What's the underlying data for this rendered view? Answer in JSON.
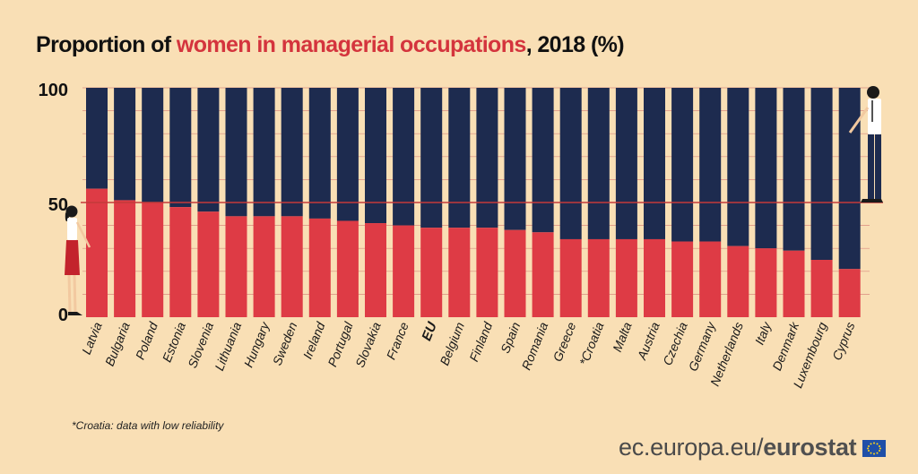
{
  "title": {
    "prefix": "Proportion of ",
    "highlight": "women in managerial occupations",
    "suffix": ", 2018 (%)"
  },
  "footnote": "*Croatia: data with low reliability",
  "brand": {
    "domain": "ec.europa.eu/",
    "name": "eurostat"
  },
  "colors": {
    "women": "#de3b45",
    "men": "#1d2b4f",
    "background": "#f9dfb5",
    "line": "#c43a3a",
    "title_highlight": "#d4343d"
  },
  "chart_data": {
    "type": "bar",
    "stacked": true,
    "categories": [
      "Latvia",
      "Bulgaria",
      "Poland",
      "Estonia",
      "Slovenia",
      "Lithuania",
      "Hungary",
      "Sweden",
      "Ireland",
      "Portugal",
      "Slovakia",
      "France",
      "EU",
      "Belgium",
      "Finland",
      "Spain",
      "Romania",
      "Greece",
      "*Croatia",
      "Malta",
      "Austria",
      "Czechia",
      "Germany",
      "Netherlands",
      "Italy",
      "Denmark",
      "Luxembourg",
      "Cyprus"
    ],
    "highlight_category": "EU",
    "series": [
      {
        "name": "Women",
        "values": [
          56,
          51,
          50,
          48,
          46,
          44,
          44,
          44,
          43,
          42,
          41,
          40,
          39,
          39,
          39,
          38,
          37,
          34,
          34,
          34,
          34,
          33,
          33,
          31,
          30,
          29,
          25,
          21
        ]
      },
      {
        "name": "Men",
        "values": [
          44,
          49,
          50,
          52,
          54,
          56,
          56,
          56,
          57,
          58,
          59,
          60,
          61,
          61,
          61,
          62,
          63,
          66,
          66,
          66,
          66,
          67,
          67,
          69,
          70,
          71,
          75,
          79
        ]
      }
    ],
    "ylim": [
      0,
      100
    ],
    "yticks": [
      0,
      50,
      100
    ],
    "reference_line": 50,
    "title": "Proportion of women in managerial occupations, 2018 (%)",
    "xlabel": "",
    "ylabel": ""
  }
}
